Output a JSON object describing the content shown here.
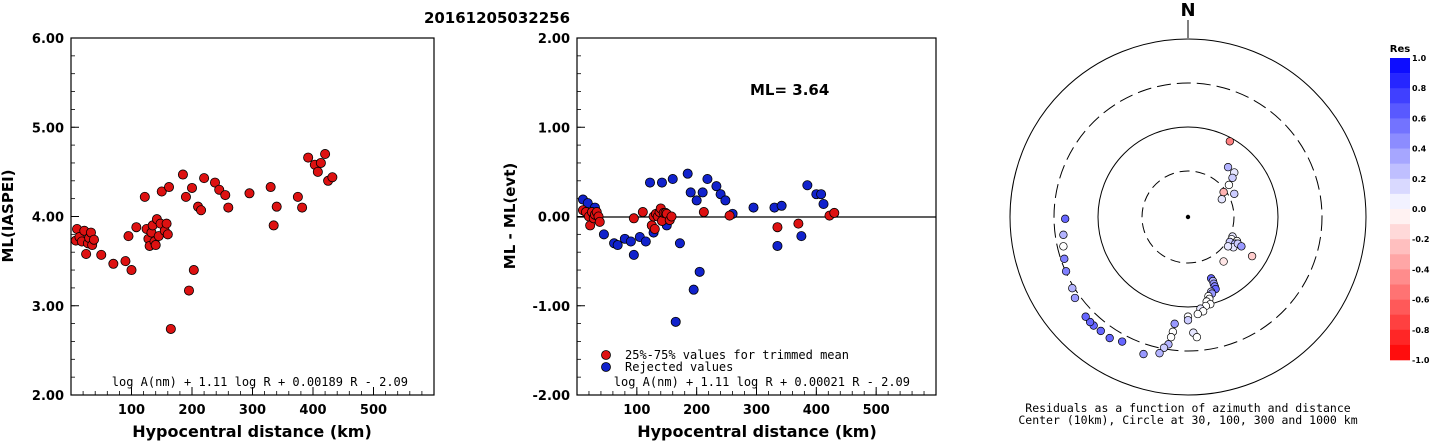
{
  "title": "20161205032256",
  "left_chart": {
    "ylabel": "ML(IASPEI)",
    "xlabel": "Hypocentral distance (km)",
    "formula": "log A(nm) + 1.11 log R + 0.00189 R - 2.09",
    "yticks": [
      "2.00",
      "3.00",
      "4.00",
      "5.00",
      "6.00"
    ],
    "xticks": [
      "100",
      "200",
      "300",
      "400",
      "500"
    ]
  },
  "mid_chart": {
    "ylabel": "ML - ML(evt)",
    "xlabel": "Hypocentral distance (km)",
    "annotation": "ML= 3.64",
    "formula": "log A(nm) + 1.11 log R + 0.00021 R - 2.09",
    "legend": [
      "25%-75% values for trimmed mean",
      "Rejected values"
    ],
    "yticks": [
      "-2.00",
      "-1.00",
      "0.00",
      "1.00",
      "2.00"
    ],
    "xticks": [
      "100",
      "200",
      "300",
      "400",
      "500"
    ]
  },
  "polar": {
    "north_label": "N",
    "caption_line1": "Residuals as a function of azimuth and distance",
    "caption_line2": "Center (10km), Circle at 30, 100, 300 and 1000 km",
    "colorbar_title": "Res",
    "colorbar_ticks": [
      "1.0",
      "0.8",
      "0.6",
      "0.4",
      "0.2",
      "0.0",
      "-0.2",
      "-0.4",
      "-0.6",
      "-0.8",
      "-1.0"
    ]
  },
  "colors": {
    "kept": "#dd1111",
    "rejected": "#1122cc",
    "axis": "#000000"
  },
  "chart_data": [
    {
      "type": "scatter",
      "title": "20161205032256",
      "xlabel": "Hypocentral distance (km)",
      "ylabel": "ML(IASPEI)",
      "xlim": [
        0,
        600
      ],
      "ylim": [
        2,
        6
      ],
      "points": [
        [
          8,
          3.73
        ],
        [
          10,
          3.86
        ],
        [
          14,
          3.77
        ],
        [
          18,
          3.72
        ],
        [
          22,
          3.84
        ],
        [
          25,
          3.58
        ],
        [
          28,
          3.7
        ],
        [
          30,
          3.76
        ],
        [
          33,
          3.82
        ],
        [
          35,
          3.68
        ],
        [
          38,
          3.74
        ],
        [
          50,
          3.57
        ],
        [
          70,
          3.47
        ],
        [
          90,
          3.5
        ],
        [
          95,
          3.78
        ],
        [
          100,
          3.4
        ],
        [
          108,
          3.88
        ],
        [
          122,
          4.22
        ],
        [
          125,
          3.86
        ],
        [
          128,
          3.75
        ],
        [
          130,
          3.67
        ],
        [
          133,
          3.82
        ],
        [
          135,
          3.9
        ],
        [
          138,
          3.72
        ],
        [
          140,
          3.68
        ],
        [
          142,
          3.97
        ],
        [
          145,
          3.78
        ],
        [
          148,
          3.92
        ],
        [
          150,
          4.28
        ],
        [
          155,
          3.84
        ],
        [
          158,
          3.92
        ],
        [
          160,
          3.8
        ],
        [
          162,
          4.33
        ],
        [
          165,
          2.74
        ],
        [
          185,
          4.47
        ],
        [
          190,
          4.22
        ],
        [
          195,
          3.17
        ],
        [
          200,
          4.32
        ],
        [
          203,
          3.4
        ],
        [
          210,
          4.11
        ],
        [
          215,
          4.07
        ],
        [
          220,
          4.43
        ],
        [
          238,
          4.38
        ],
        [
          245,
          4.3
        ],
        [
          255,
          4.24
        ],
        [
          260,
          4.1
        ],
        [
          295,
          4.26
        ],
        [
          330,
          4.33
        ],
        [
          335,
          3.9
        ],
        [
          340,
          4.11
        ],
        [
          375,
          4.22
        ],
        [
          382,
          4.1
        ],
        [
          392,
          4.66
        ],
        [
          403,
          4.58
        ],
        [
          408,
          4.5
        ],
        [
          413,
          4.6
        ],
        [
          420,
          4.7
        ],
        [
          425,
          4.4
        ],
        [
          432,
          4.44
        ]
      ]
    },
    {
      "type": "scatter",
      "xlabel": "Hypocentral distance (km)",
      "ylabel": "ML - ML(evt)",
      "xlim": [
        0,
        600
      ],
      "ylim": [
        -2,
        2
      ],
      "series": [
        {
          "name": "25%-75% values for trimmed mean",
          "points": [
            [
              10,
              0.07
            ],
            [
              15,
              0.05
            ],
            [
              20,
              0.0
            ],
            [
              22,
              -0.1
            ],
            [
              25,
              0.05
            ],
            [
              28,
              -0.02
            ],
            [
              30,
              0.02
            ],
            [
              33,
              0.05
            ],
            [
              36,
              0.0
            ],
            [
              38,
              -0.06
            ],
            [
              95,
              -0.02
            ],
            [
              110,
              0.05
            ],
            [
              125,
              -0.1
            ],
            [
              128,
              0.0
            ],
            [
              130,
              -0.14
            ],
            [
              132,
              0.03
            ],
            [
              135,
              0.0
            ],
            [
              138,
              0.05
            ],
            [
              140,
              0.09
            ],
            [
              142,
              -0.05
            ],
            [
              145,
              0.04
            ],
            [
              148,
              0.04
            ],
            [
              150,
              0.03
            ],
            [
              155,
              -0.04
            ],
            [
              158,
              0.0
            ],
            [
              212,
              0.05
            ],
            [
              255,
              0.01
            ],
            [
              335,
              -0.12
            ],
            [
              370,
              -0.08
            ],
            [
              422,
              0.01
            ],
            [
              430,
              0.04
            ]
          ]
        },
        {
          "name": "Rejected values",
          "points": [
            [
              10,
              0.19
            ],
            [
              18,
              0.15
            ],
            [
              30,
              0.1
            ],
            [
              45,
              -0.2
            ],
            [
              62,
              -0.3
            ],
            [
              68,
              -0.32
            ],
            [
              80,
              -0.25
            ],
            [
              90,
              -0.28
            ],
            [
              95,
              -0.43
            ],
            [
              105,
              -0.23
            ],
            [
              115,
              -0.28
            ],
            [
              122,
              0.38
            ],
            [
              128,
              -0.18
            ],
            [
              142,
              0.38
            ],
            [
              150,
              -0.1
            ],
            [
              160,
              0.42
            ],
            [
              165,
              -1.18
            ],
            [
              172,
              -0.3
            ],
            [
              185,
              0.48
            ],
            [
              190,
              0.27
            ],
            [
              195,
              -0.82
            ],
            [
              200,
              0.18
            ],
            [
              205,
              -0.62
            ],
            [
              210,
              0.27
            ],
            [
              218,
              0.42
            ],
            [
              233,
              0.34
            ],
            [
              240,
              0.25
            ],
            [
              248,
              0.18
            ],
            [
              260,
              0.03
            ],
            [
              295,
              0.1
            ],
            [
              330,
              0.1
            ],
            [
              335,
              -0.33
            ],
            [
              342,
              0.12
            ],
            [
              375,
              -0.22
            ],
            [
              385,
              0.35
            ],
            [
              400,
              0.25
            ],
            [
              408,
              0.25
            ],
            [
              412,
              0.14
            ]
          ]
        }
      ]
    },
    {
      "type": "scatter",
      "title": "Residuals as a function of azimuth and distance",
      "points_xy": [
        [
          0.47,
          0.85,
          -0.5
        ],
        [
          0.45,
          0.56,
          0.3
        ],
        [
          0.52,
          0.5,
          0.1
        ],
        [
          0.5,
          0.44,
          0.2
        ],
        [
          0.46,
          0.36,
          0.0
        ],
        [
          0.52,
          0.26,
          0.2
        ],
        [
          0.38,
          0.2,
          0.1
        ],
        [
          0.4,
          0.28,
          -0.3
        ],
        [
          0.5,
          -0.22,
          0.1
        ],
        [
          0.49,
          -0.25,
          0.0
        ],
        [
          0.47,
          -0.28,
          0.2
        ],
        [
          0.55,
          -0.27,
          0.0
        ],
        [
          0.53,
          -0.3,
          0.3
        ],
        [
          0.51,
          -0.34,
          0.1
        ],
        [
          0.56,
          -0.3,
          0.2
        ],
        [
          0.45,
          -0.33,
          0.1
        ],
        [
          0.6,
          -0.33,
          0.4
        ],
        [
          0.72,
          -0.44,
          -0.2
        ],
        [
          0.4,
          -0.5,
          -0.1
        ],
        [
          0.26,
          -0.69,
          0.6
        ],
        [
          0.28,
          -0.72,
          0.3
        ],
        [
          0.29,
          -0.75,
          0.4
        ],
        [
          0.3,
          -0.78,
          0.5
        ],
        [
          0.31,
          -0.81,
          0.6
        ],
        [
          0.26,
          -0.84,
          0.2
        ],
        [
          0.27,
          -0.86,
          0.4
        ],
        [
          0.23,
          -0.89,
          0.0
        ],
        [
          0.24,
          -0.92,
          0.0
        ],
        [
          0.21,
          -0.95,
          0.0
        ],
        [
          0.25,
          -0.98,
          0.0
        ],
        [
          0.2,
          -1.0,
          0.0
        ],
        [
          0.14,
          -1.03,
          0.1
        ],
        [
          0.17,
          -1.06,
          0.0
        ],
        [
          0.11,
          -1.09,
          0.0
        ],
        [
          0.0,
          -1.12,
          0.0
        ],
        [
          0.0,
          -1.16,
          0.2
        ],
        [
          -0.15,
          -1.2,
          0.4
        ],
        [
          -0.17,
          -1.29,
          0.0
        ],
        [
          0.06,
          -1.3,
          0.1
        ],
        [
          0.1,
          -1.35,
          0.0
        ],
        [
          -0.19,
          -1.35,
          0.0
        ],
        [
          -0.22,
          -1.43,
          0.3
        ],
        [
          -0.27,
          -1.47,
          0.2
        ],
        [
          -0.32,
          -1.53,
          0.3
        ],
        [
          -0.5,
          -1.54,
          0.4
        ],
        [
          -0.74,
          -1.4,
          0.6
        ],
        [
          -0.88,
          -1.36,
          0.6
        ],
        [
          -0.98,
          -1.28,
          0.6
        ],
        [
          -1.06,
          -1.22,
          0.6
        ],
        [
          -1.1,
          -1.18,
          0.6
        ],
        [
          -1.15,
          -1.12,
          0.6
        ],
        [
          -1.27,
          -0.91,
          0.4
        ],
        [
          -1.3,
          -0.8,
          0.3
        ],
        [
          -1.37,
          -0.61,
          0.5
        ],
        [
          -1.39,
          -0.47,
          0.5
        ],
        [
          -1.4,
          -0.33,
          0.0
        ],
        [
          -1.4,
          -0.2,
          0.3
        ],
        [
          -1.38,
          -0.02,
          0.6
        ]
      ]
    }
  ]
}
